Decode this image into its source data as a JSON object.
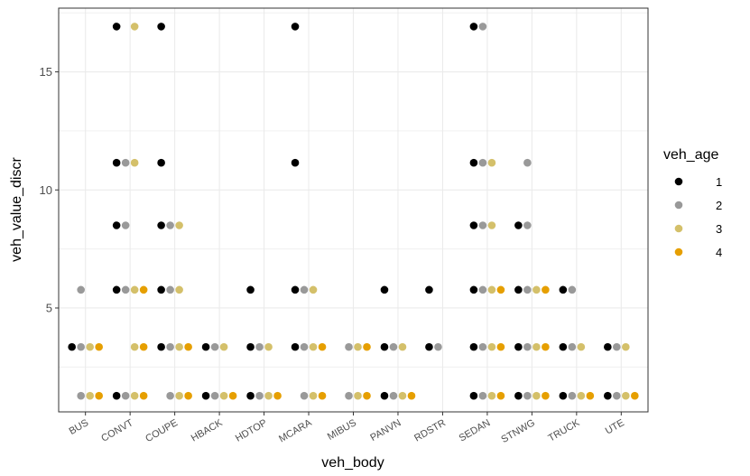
{
  "chart_data": {
    "type": "scatter",
    "xlabel": "veh_body",
    "ylabel": "veh_value_discr",
    "categories": [
      "BUS",
      "CONVT",
      "COUPE",
      "HBACK",
      "HDTOP",
      "MCARA",
      "MIBUS",
      "PANVN",
      "RDSTR",
      "SEDAN",
      "STNWG",
      "TRUCK",
      "UTE"
    ],
    "y_ticks": [
      5,
      10,
      15
    ],
    "ylim": [
      0.6,
      17.7
    ],
    "grid": true,
    "legend": {
      "title": "veh_age",
      "placement": "right"
    },
    "colors": {
      "1": "#000000",
      "2": "#999999",
      "3": "#d4c06a",
      "4": "#e69f00"
    },
    "series": [
      {
        "name": "1",
        "points": [
          [
            "BUS",
            3.35
          ],
          [
            "CONVT",
            16.92
          ],
          [
            "CONVT",
            11.15
          ],
          [
            "CONVT",
            8.5
          ],
          [
            "CONVT",
            5.77
          ],
          [
            "CONVT",
            1.28
          ],
          [
            "COUPE",
            16.92
          ],
          [
            "COUPE",
            11.15
          ],
          [
            "COUPE",
            8.5
          ],
          [
            "COUPE",
            5.77
          ],
          [
            "COUPE",
            3.35
          ],
          [
            "HBACK",
            3.35
          ],
          [
            "HBACK",
            1.28
          ],
          [
            "HDTOP",
            5.77
          ],
          [
            "HDTOP",
            3.35
          ],
          [
            "HDTOP",
            1.28
          ],
          [
            "MCARA",
            16.92
          ],
          [
            "MCARA",
            11.15
          ],
          [
            "MCARA",
            5.77
          ],
          [
            "MCARA",
            3.35
          ],
          [
            "PANVN",
            5.77
          ],
          [
            "PANVN",
            3.35
          ],
          [
            "PANVN",
            1.28
          ],
          [
            "RDSTR",
            5.77
          ],
          [
            "RDSTR",
            3.35
          ],
          [
            "SEDAN",
            16.92
          ],
          [
            "SEDAN",
            11.15
          ],
          [
            "SEDAN",
            8.5
          ],
          [
            "SEDAN",
            5.77
          ],
          [
            "SEDAN",
            3.35
          ],
          [
            "SEDAN",
            1.28
          ],
          [
            "STNWG",
            8.5
          ],
          [
            "STNWG",
            5.77
          ],
          [
            "STNWG",
            3.35
          ],
          [
            "STNWG",
            1.28
          ],
          [
            "TRUCK",
            5.77
          ],
          [
            "TRUCK",
            3.35
          ],
          [
            "TRUCK",
            1.28
          ],
          [
            "UTE",
            3.35
          ],
          [
            "UTE",
            1.28
          ]
        ]
      },
      {
        "name": "2",
        "points": [
          [
            "BUS",
            5.77
          ],
          [
            "BUS",
            3.35
          ],
          [
            "BUS",
            1.28
          ],
          [
            "CONVT",
            11.15
          ],
          [
            "CONVT",
            8.5
          ],
          [
            "CONVT",
            5.77
          ],
          [
            "CONVT",
            1.28
          ],
          [
            "COUPE",
            8.5
          ],
          [
            "COUPE",
            5.77
          ],
          [
            "COUPE",
            3.35
          ],
          [
            "COUPE",
            1.28
          ],
          [
            "HBACK",
            3.35
          ],
          [
            "HBACK",
            1.28
          ],
          [
            "HDTOP",
            3.35
          ],
          [
            "HDTOP",
            1.28
          ],
          [
            "MCARA",
            5.77
          ],
          [
            "MCARA",
            3.35
          ],
          [
            "MCARA",
            1.28
          ],
          [
            "MIBUS",
            3.35
          ],
          [
            "MIBUS",
            1.28
          ],
          [
            "PANVN",
            3.35
          ],
          [
            "PANVN",
            1.28
          ],
          [
            "RDSTR",
            3.35
          ],
          [
            "SEDAN",
            16.92
          ],
          [
            "SEDAN",
            11.15
          ],
          [
            "SEDAN",
            8.5
          ],
          [
            "SEDAN",
            5.77
          ],
          [
            "SEDAN",
            3.35
          ],
          [
            "SEDAN",
            1.28
          ],
          [
            "STNWG",
            11.15
          ],
          [
            "STNWG",
            8.5
          ],
          [
            "STNWG",
            5.77
          ],
          [
            "STNWG",
            3.35
          ],
          [
            "STNWG",
            1.28
          ],
          [
            "TRUCK",
            5.77
          ],
          [
            "TRUCK",
            3.35
          ],
          [
            "TRUCK",
            1.28
          ],
          [
            "UTE",
            3.35
          ],
          [
            "UTE",
            1.28
          ]
        ]
      },
      {
        "name": "3",
        "points": [
          [
            "BUS",
            3.35
          ],
          [
            "BUS",
            1.28
          ],
          [
            "CONVT",
            16.92
          ],
          [
            "CONVT",
            11.15
          ],
          [
            "CONVT",
            5.77
          ],
          [
            "CONVT",
            3.35
          ],
          [
            "CONVT",
            1.28
          ],
          [
            "COUPE",
            8.5
          ],
          [
            "COUPE",
            5.77
          ],
          [
            "COUPE",
            3.35
          ],
          [
            "COUPE",
            1.28
          ],
          [
            "HBACK",
            3.35
          ],
          [
            "HBACK",
            1.28
          ],
          [
            "HDTOP",
            3.35
          ],
          [
            "HDTOP",
            1.28
          ],
          [
            "MCARA",
            5.77
          ],
          [
            "MCARA",
            3.35
          ],
          [
            "MCARA",
            1.28
          ],
          [
            "MIBUS",
            3.35
          ],
          [
            "MIBUS",
            1.28
          ],
          [
            "PANVN",
            3.35
          ],
          [
            "PANVN",
            1.28
          ],
          [
            "SEDAN",
            11.15
          ],
          [
            "SEDAN",
            8.5
          ],
          [
            "SEDAN",
            5.77
          ],
          [
            "SEDAN",
            3.35
          ],
          [
            "SEDAN",
            1.28
          ],
          [
            "STNWG",
            5.77
          ],
          [
            "STNWG",
            3.35
          ],
          [
            "STNWG",
            1.28
          ],
          [
            "TRUCK",
            3.35
          ],
          [
            "TRUCK",
            1.28
          ],
          [
            "UTE",
            3.35
          ],
          [
            "UTE",
            1.28
          ]
        ]
      },
      {
        "name": "4",
        "points": [
          [
            "BUS",
            3.35
          ],
          [
            "BUS",
            1.28
          ],
          [
            "CONVT",
            5.77
          ],
          [
            "CONVT",
            3.35
          ],
          [
            "CONVT",
            1.28
          ],
          [
            "COUPE",
            3.35
          ],
          [
            "COUPE",
            1.28
          ],
          [
            "HBACK",
            1.28
          ],
          [
            "HDTOP",
            1.28
          ],
          [
            "MCARA",
            3.35
          ],
          [
            "MCARA",
            1.28
          ],
          [
            "MIBUS",
            3.35
          ],
          [
            "MIBUS",
            1.28
          ],
          [
            "PANVN",
            1.28
          ],
          [
            "SEDAN",
            5.77
          ],
          [
            "SEDAN",
            3.35
          ],
          [
            "SEDAN",
            1.28
          ],
          [
            "STNWG",
            5.77
          ],
          [
            "STNWG",
            3.35
          ],
          [
            "STNWG",
            1.28
          ],
          [
            "TRUCK",
            1.28
          ],
          [
            "UTE",
            1.28
          ]
        ]
      }
    ]
  }
}
